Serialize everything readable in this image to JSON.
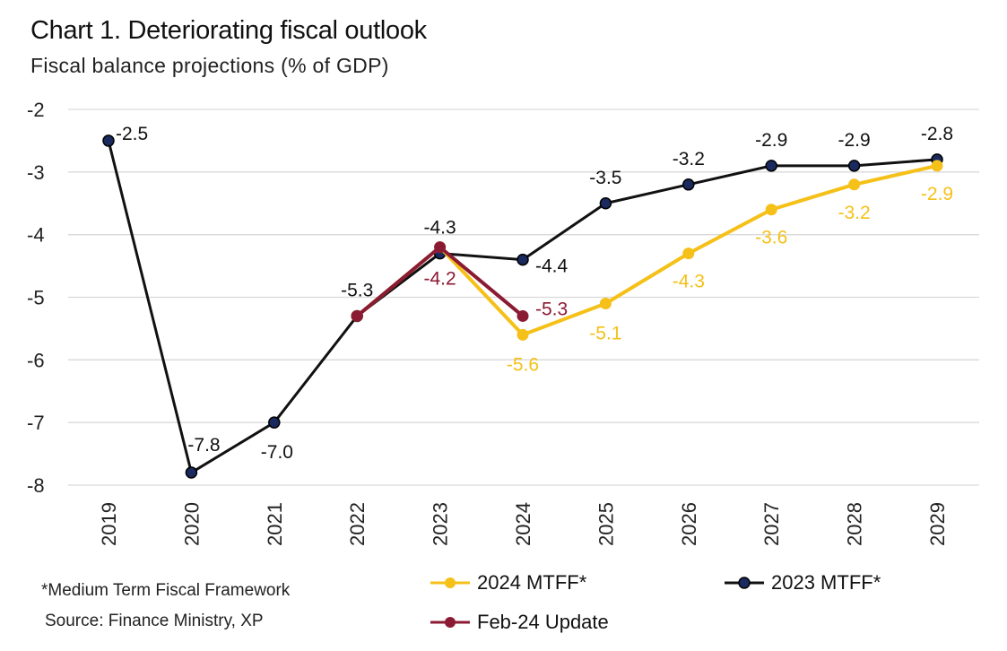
{
  "header": {
    "title": "Chart 1. Deteriorating fiscal outlook",
    "subtitle": "Fiscal balance projections (% of GDP)"
  },
  "footnotes": {
    "note": "*Medium Term Fiscal Framework",
    "source": "Source: Finance Ministry, XP"
  },
  "colors": {
    "mtff2024": "#F5C018",
    "mtff2023": "#111111",
    "mtff2023_marker": "#1a2a5e",
    "feb24": "#8B1A33",
    "grid": "#d9d9d9"
  },
  "chart_data": {
    "type": "line",
    "title": "Chart 1. Deteriorating fiscal outlook",
    "subtitle": "Fiscal balance projections (% of GDP)",
    "xlabel": "",
    "ylabel": "",
    "categories": [
      "2019",
      "2020",
      "2021",
      "2022",
      "2023",
      "2024",
      "2025",
      "2026",
      "2027",
      "2028",
      "2029"
    ],
    "ylim": [
      -8,
      -2
    ],
    "yticks": [
      "-2",
      "-3",
      "-4",
      "-5",
      "-6",
      "-7",
      "-8"
    ],
    "grid": true,
    "legend_position": "bottom",
    "series": [
      {
        "name": "2024 MTFF*",
        "color": "#F5C018",
        "points": [
          {
            "x": "2022",
            "y": -5.3
          },
          {
            "x": "2023",
            "y": -4.2
          },
          {
            "x": "2024",
            "y": -5.6,
            "label": "-5.6"
          },
          {
            "x": "2025",
            "y": -5.1,
            "label": "-5.1"
          },
          {
            "x": "2026",
            "y": -4.3,
            "label": "-4.3"
          },
          {
            "x": "2027",
            "y": -3.6,
            "label": "-3.6"
          },
          {
            "x": "2028",
            "y": -3.2,
            "label": "-3.2"
          },
          {
            "x": "2029",
            "y": -2.9,
            "label": "-2.9"
          }
        ]
      },
      {
        "name": "2023 MTFF*",
        "color": "#111111",
        "points": [
          {
            "x": "2019",
            "y": -2.5,
            "label": "-2.5"
          },
          {
            "x": "2020",
            "y": -7.8,
            "label": "-7.8"
          },
          {
            "x": "2021",
            "y": -7.0,
            "label": "-7.0"
          },
          {
            "x": "2022",
            "y": -5.3,
            "label": "-5.3"
          },
          {
            "x": "2023",
            "y": -4.3,
            "label": "-4.3"
          },
          {
            "x": "2024",
            "y": -4.4,
            "label": "-4.4"
          },
          {
            "x": "2025",
            "y": -3.5,
            "label": "-3.5"
          },
          {
            "x": "2026",
            "y": -3.2,
            "label": "-3.2"
          },
          {
            "x": "2027",
            "y": -2.9,
            "label": "-2.9"
          },
          {
            "x": "2028",
            "y": -2.9,
            "label": "-2.9"
          },
          {
            "x": "2029",
            "y": -2.8,
            "label": "-2.8"
          }
        ]
      },
      {
        "name": "Feb-24 Update",
        "color": "#8B1A33",
        "points": [
          {
            "x": "2022",
            "y": -5.3
          },
          {
            "x": "2023",
            "y": -4.2,
            "label": "-4.2"
          },
          {
            "x": "2024",
            "y": -5.3,
            "label": "-5.3"
          }
        ]
      }
    ]
  }
}
